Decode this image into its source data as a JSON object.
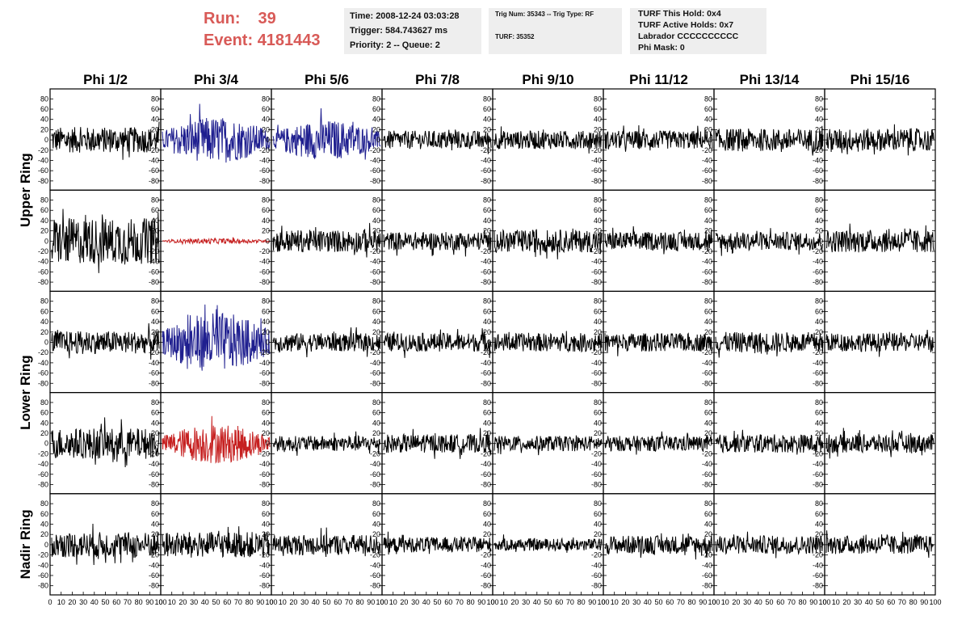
{
  "header": {
    "run_label": "Run:",
    "run_value": "39",
    "event_label": "Event:",
    "event_value": "4181443",
    "time": "Time: 2008-12-24 03:03:28",
    "trigger": "Trigger: 584.743627 ms",
    "priority": "Priority: 2 -- Queue: 2",
    "trig_num": "Trig Num: 35343 -- Trig Type: RF",
    "turf": "TURF: 35352",
    "turf_this_hold": "TURF This Hold: 0x4",
    "turf_active_holds": "TURF Active Holds: 0x7",
    "labrador": "Labrador CCCCCCCCCC",
    "phi_mask": "Phi Mask: 0"
  },
  "chart_data": {
    "type": "line",
    "columns": [
      "Phi 1/2",
      "Phi 3/4",
      "Phi 5/6",
      "Phi 7/8",
      "Phi 9/10",
      "Phi 11/12",
      "Phi 13/14",
      "Phi 15/16"
    ],
    "row_labels": [
      {
        "label": "Upper Ring",
        "rows": [
          0,
          1
        ]
      },
      {
        "label": "Lower Ring",
        "rows": [
          2,
          3
        ]
      },
      {
        "label": "Nadir Ring",
        "rows": [
          4
        ]
      }
    ],
    "xlim": [
      0,
      100
    ],
    "ylim": [
      -90,
      90
    ],
    "x_ticks": [
      0,
      10,
      20,
      30,
      40,
      50,
      60,
      70,
      80,
      90,
      100
    ],
    "x_tick_labels": [
      "0",
      "10",
      "20",
      "30",
      "40",
      "50",
      "60",
      "70",
      "80",
      "90",
      "100"
    ],
    "y_ticks": [
      80,
      60,
      40,
      20,
      0,
      -20,
      -40,
      -60,
      -80
    ],
    "colors": {
      "normal": "#000000",
      "triggered": "#1f1f8f",
      "highlight": "#c62020",
      "header_red": "#d85a57"
    },
    "panels": [
      {
        "row": 0,
        "col": 0,
        "color": "normal",
        "amplitude": 25
      },
      {
        "row": 0,
        "col": 1,
        "color": "triggered",
        "amplitude": 35
      },
      {
        "row": 0,
        "col": 2,
        "color": "triggered",
        "amplitude": 30
      },
      {
        "row": 0,
        "col": 3,
        "color": "normal",
        "amplitude": 18
      },
      {
        "row": 0,
        "col": 4,
        "color": "normal",
        "amplitude": 18
      },
      {
        "row": 0,
        "col": 5,
        "color": "normal",
        "amplitude": 18
      },
      {
        "row": 0,
        "col": 6,
        "color": "normal",
        "amplitude": 22
      },
      {
        "row": 0,
        "col": 7,
        "color": "normal",
        "amplitude": 22
      },
      {
        "row": 1,
        "col": 0,
        "color": "normal",
        "amplitude": 45
      },
      {
        "row": 1,
        "col": 1,
        "color": "highlight",
        "amplitude": 4
      },
      {
        "row": 1,
        "col": 2,
        "color": "normal",
        "amplitude": 22
      },
      {
        "row": 1,
        "col": 3,
        "color": "normal",
        "amplitude": 18
      },
      {
        "row": 1,
        "col": 4,
        "color": "normal",
        "amplitude": 22
      },
      {
        "row": 1,
        "col": 5,
        "color": "normal",
        "amplitude": 18
      },
      {
        "row": 1,
        "col": 6,
        "color": "normal",
        "amplitude": 18
      },
      {
        "row": 1,
        "col": 7,
        "color": "normal",
        "amplitude": 22
      },
      {
        "row": 2,
        "col": 0,
        "color": "normal",
        "amplitude": 22
      },
      {
        "row": 2,
        "col": 1,
        "color": "triggered",
        "amplitude": 45
      },
      {
        "row": 2,
        "col": 2,
        "color": "normal",
        "amplitude": 18
      },
      {
        "row": 2,
        "col": 3,
        "color": "normal",
        "amplitude": 18
      },
      {
        "row": 2,
        "col": 4,
        "color": "normal",
        "amplitude": 18
      },
      {
        "row": 2,
        "col": 5,
        "color": "normal",
        "amplitude": 18
      },
      {
        "row": 2,
        "col": 6,
        "color": "normal",
        "amplitude": 20
      },
      {
        "row": 2,
        "col": 7,
        "color": "normal",
        "amplitude": 18
      },
      {
        "row": 3,
        "col": 0,
        "color": "normal",
        "amplitude": 30
      },
      {
        "row": 3,
        "col": 1,
        "color": "highlight",
        "amplitude": 30
      },
      {
        "row": 3,
        "col": 2,
        "color": "normal",
        "amplitude": 15
      },
      {
        "row": 3,
        "col": 3,
        "color": "normal",
        "amplitude": 18
      },
      {
        "row": 3,
        "col": 4,
        "color": "normal",
        "amplitude": 15
      },
      {
        "row": 3,
        "col": 5,
        "color": "normal",
        "amplitude": 15
      },
      {
        "row": 3,
        "col": 6,
        "color": "normal",
        "amplitude": 18
      },
      {
        "row": 3,
        "col": 7,
        "color": "normal",
        "amplitude": 18
      },
      {
        "row": 4,
        "col": 0,
        "color": "normal",
        "amplitude": 25
      },
      {
        "row": 4,
        "col": 1,
        "color": "normal",
        "amplitude": 25
      },
      {
        "row": 4,
        "col": 2,
        "color": "normal",
        "amplitude": 20
      },
      {
        "row": 4,
        "col": 3,
        "color": "normal",
        "amplitude": 15
      },
      {
        "row": 4,
        "col": 4,
        "color": "normal",
        "amplitude": 12
      },
      {
        "row": 4,
        "col": 5,
        "color": "normal",
        "amplitude": 18
      },
      {
        "row": 4,
        "col": 6,
        "color": "normal",
        "amplitude": 18
      },
      {
        "row": 4,
        "col": 7,
        "color": "normal",
        "amplitude": 18
      }
    ]
  }
}
